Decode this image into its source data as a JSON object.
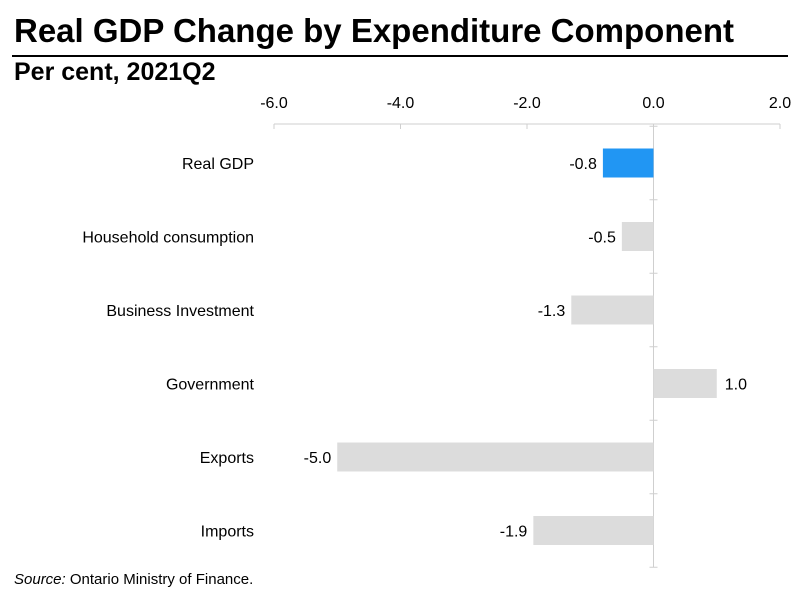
{
  "chart_data": {
    "type": "bar",
    "orientation": "horizontal",
    "title": "Real GDP Change by Expenditure Component",
    "subtitle": "Per cent, 2021Q2",
    "categories": [
      "Real GDP",
      "Household consumption",
      "Business Investment",
      "Government",
      "Exports",
      "Imports"
    ],
    "values": [
      -0.8,
      -0.5,
      -1.3,
      1.0,
      -5.0,
      -1.9
    ],
    "value_labels": [
      "-0.8",
      "-0.5",
      "-1.3",
      "1.0",
      "-5.0",
      "-1.9"
    ],
    "xlim": [
      -6.0,
      2.0
    ],
    "xticks": [
      -6.0,
      -4.0,
      -2.0,
      0.0,
      2.0
    ],
    "xtick_labels": [
      "-6.0",
      "-4.0",
      "-2.0",
      "0.0",
      "2.0"
    ],
    "axis_position": "top",
    "highlight_color": "#2196f3",
    "bar_color": "#dcdcdc",
    "highlight_index": 0
  },
  "source": {
    "label": "Source:",
    "text": " Ontario Ministry of Finance."
  }
}
